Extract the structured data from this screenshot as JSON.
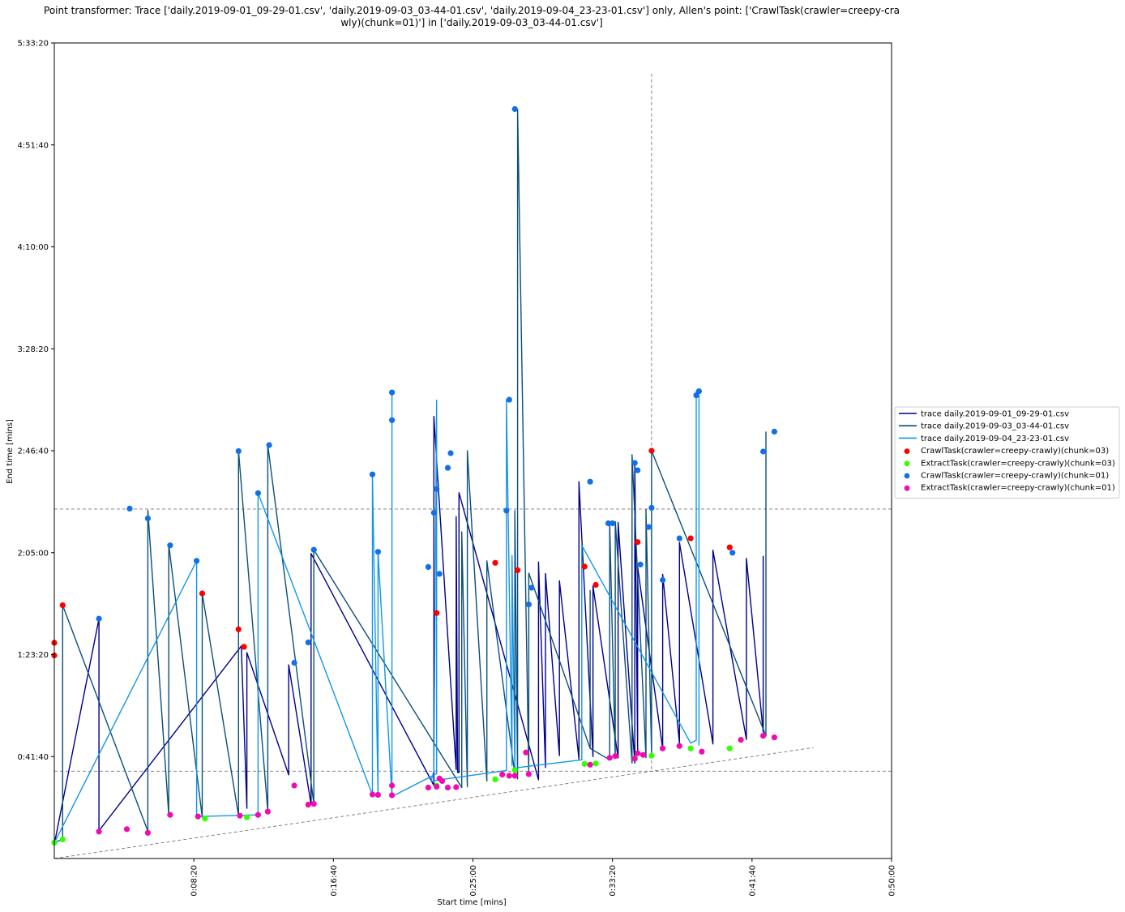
{
  "chart_data": {
    "type": "line",
    "title_lines": [
      "Point transformer: Trace ['daily.2019-09-01_09-29-01.csv', 'daily.2019-09-03_03-44-01.csv', 'daily.2019-09-04_23-23-01.csv'] only, Allen's point: ['CrawlTask(crawler=creepy-cra",
      "wly)(chunk=01)'] in ['daily.2019-09-03_03-44-01.csv']"
    ],
    "xlabel": "Start time [mins]",
    "ylabel": "End time [mins]",
    "xlim": [
      0,
      3000
    ],
    "ylim": [
      0,
      20000
    ],
    "x_ticks": [
      {
        "value": 500,
        "label": "0:08:20"
      },
      {
        "value": 1000,
        "label": "0:16:40"
      },
      {
        "value": 1500,
        "label": "0:25:00"
      },
      {
        "value": 2000,
        "label": "0:33:20"
      },
      {
        "value": 2500,
        "label": "0:41:40"
      },
      {
        "value": 3000,
        "label": "0:50:00"
      }
    ],
    "y_ticks": [
      {
        "value": 2500,
        "label": "0:41:40"
      },
      {
        "value": 5000,
        "label": "1:23:20"
      },
      {
        "value": 7500,
        "label": "2:05:00"
      },
      {
        "value": 10000,
        "label": "2:46:40"
      },
      {
        "value": 12500,
        "label": "3:28:20"
      },
      {
        "value": 15000,
        "label": "4:10:00"
      },
      {
        "value": 17500,
        "label": "4:51:40"
      },
      {
        "value": 20000,
        "label": "5:33:20"
      }
    ],
    "reference_lines": {
      "diagonal": {
        "from": [
          0,
          0
        ],
        "to": [
          2720,
          2720
        ]
      },
      "allen_point_x": 2140,
      "allen_point_y_top": 19250,
      "allen_point_y_bottom": 2140,
      "h_band": [
        2140,
        8570
      ]
    },
    "grid": false,
    "legend_position": "right",
    "series": [
      {
        "name": "trace daily.2019-09-01_09-29-01.csv",
        "color": "#00008b",
        "width": 1.4,
        "points": [
          [
            0,
            350
          ],
          [
            160,
            5880
          ],
          [
            160,
            680
          ],
          [
            670,
            5210
          ],
          [
            690,
            1230
          ],
          [
            690,
            5050
          ],
          [
            840,
            2050
          ],
          [
            840,
            4750
          ],
          [
            920,
            1320
          ],
          [
            920,
            7480
          ],
          [
            1360,
            1790
          ],
          [
            1360,
            10840
          ],
          [
            1440,
            2180
          ],
          [
            1440,
            8380
          ],
          [
            1445,
            2110
          ],
          [
            1450,
            2110
          ],
          [
            1450,
            8970
          ],
          [
            1735,
            1930
          ],
          [
            1735,
            7270
          ],
          [
            1760,
            2230
          ],
          [
            1760,
            6990
          ],
          [
            1810,
            2520
          ],
          [
            1810,
            6810
          ],
          [
            1880,
            2440
          ],
          [
            1880,
            9240
          ],
          [
            1930,
            2500
          ],
          [
            1930,
            6680
          ],
          [
            2020,
            2470
          ],
          [
            2020,
            8240
          ],
          [
            2080,
            2340
          ],
          [
            2080,
            9700
          ],
          [
            2090,
            2650
          ],
          [
            2090,
            7150
          ],
          [
            2180,
            2690
          ],
          [
            2180,
            6970
          ],
          [
            2240,
            2830
          ],
          [
            2240,
            7750
          ],
          [
            2360,
            2810
          ],
          [
            2360,
            7560
          ],
          [
            2480,
            2920
          ],
          [
            2480,
            7360
          ],
          [
            2540,
            3100
          ],
          [
            2540,
            7420
          ]
        ]
      },
      {
        "name": "trace daily.2019-09-03_03-44-01.csv",
        "color": "#0b4f7a",
        "width": 1.4,
        "points": [
          [
            0,
            390
          ],
          [
            30,
            470
          ],
          [
            30,
            6210
          ],
          [
            335,
            670
          ],
          [
            335,
            8540
          ],
          [
            410,
            1070
          ],
          [
            410,
            7700
          ],
          [
            530,
            1010
          ],
          [
            530,
            6500
          ],
          [
            660,
            1050
          ],
          [
            660,
            10000
          ],
          [
            765,
            1150
          ],
          [
            765,
            10140
          ],
          [
            930,
            1340
          ],
          [
            930,
            7570
          ],
          [
            1460,
            1740
          ],
          [
            1460,
            8010
          ],
          [
            1480,
            1760
          ],
          [
            1480,
            10000
          ],
          [
            1550,
            1900
          ],
          [
            1550,
            7300
          ],
          [
            1650,
            2060
          ],
          [
            1650,
            8530
          ],
          [
            1660,
            1950
          ],
          [
            1660,
            18380
          ],
          [
            1700,
            2050
          ],
          [
            1700,
            7000
          ],
          [
            1920,
            2700
          ],
          [
            1920,
            6570
          ],
          [
            1920,
            2700
          ],
          [
            1990,
            2420
          ],
          [
            1990,
            8260
          ],
          [
            2010,
            2460
          ],
          [
            2010,
            8260
          ],
          [
            2070,
            2340
          ],
          [
            2070,
            9900
          ],
          [
            2120,
            2470
          ],
          [
            2120,
            8560
          ],
          [
            2140,
            2560
          ],
          [
            2140,
            10000
          ],
          [
            2550,
            3010
          ],
          [
            2550,
            10470
          ]
        ]
      },
      {
        "name": "trace daily.2019-09-04_23-23-01.csv",
        "color": "#1296e8",
        "width": 1.4,
        "points": [
          [
            0,
            380
          ],
          [
            510,
            7300
          ],
          [
            510,
            1030
          ],
          [
            730,
            1070
          ],
          [
            730,
            8960
          ],
          [
            1140,
            1560
          ],
          [
            1140,
            9420
          ],
          [
            1160,
            1560
          ],
          [
            1160,
            7520
          ],
          [
            1210,
            1520
          ],
          [
            1210,
            11430
          ],
          [
            1210,
            1520
          ],
          [
            1370,
            2080
          ],
          [
            1370,
            11240
          ],
          [
            1360,
            2150
          ],
          [
            1350,
            1900
          ],
          [
            1620,
            2160
          ],
          [
            1620,
            11250
          ],
          [
            1640,
            2280
          ],
          [
            1640,
            7430
          ],
          [
            1650,
            2220
          ],
          [
            1890,
            2420
          ],
          [
            1890,
            7680
          ],
          [
            2280,
            2830
          ],
          [
            2300,
            2900
          ],
          [
            2300,
            11460
          ],
          [
            2310,
            11360
          ],
          [
            2310,
            2770
          ]
        ]
      }
    ],
    "scatter_series": [
      {
        "name": "CrawlTask(crawler=creepy-crawly)(chunk=03)",
        "color": "#ff0000",
        "points": [
          [
            0,
            5290
          ],
          [
            0,
            4980
          ],
          [
            30,
            6210
          ],
          [
            530,
            6500
          ],
          [
            660,
            5620
          ],
          [
            680,
            5190
          ],
          [
            1370,
            6020
          ],
          [
            1580,
            7250
          ],
          [
            1660,
            7070
          ],
          [
            1900,
            7160
          ],
          [
            1940,
            6710
          ],
          [
            2090,
            7760
          ],
          [
            2140,
            10000
          ],
          [
            2280,
            7850
          ],
          [
            2420,
            7630
          ]
        ]
      },
      {
        "name": "ExtractTask(crawler=creepy-crawly)(chunk=03)",
        "color": "#33ff00",
        "points": [
          [
            0,
            390
          ],
          [
            30,
            470
          ],
          [
            540,
            980
          ],
          [
            690,
            1010
          ],
          [
            1370,
            1790
          ],
          [
            1580,
            1940
          ],
          [
            1650,
            2170
          ],
          [
            1900,
            2320
          ],
          [
            1940,
            2330
          ],
          [
            2080,
            2460
          ],
          [
            2140,
            2520
          ],
          [
            2280,
            2700
          ],
          [
            2420,
            2700
          ]
        ]
      },
      {
        "name": "CrawlTask(crawler=creepy-crawly)(chunk=01)",
        "color": "#1170e8",
        "points": [
          [
            160,
            5880
          ],
          [
            270,
            8580
          ],
          [
            335,
            8340
          ],
          [
            415,
            7680
          ],
          [
            510,
            7300
          ],
          [
            660,
            9990
          ],
          [
            730,
            8960
          ],
          [
            770,
            10140
          ],
          [
            860,
            4800
          ],
          [
            910,
            5300
          ],
          [
            930,
            7570
          ],
          [
            1140,
            9420
          ],
          [
            1160,
            7520
          ],
          [
            1210,
            11430
          ],
          [
            1210,
            10750
          ],
          [
            1340,
            7150
          ],
          [
            1360,
            8480
          ],
          [
            1370,
            9060
          ],
          [
            1380,
            6980
          ],
          [
            1410,
            9580
          ],
          [
            1420,
            9940
          ],
          [
            1620,
            8530
          ],
          [
            1630,
            11250
          ],
          [
            1650,
            18380
          ],
          [
            1700,
            6230
          ],
          [
            1710,
            6640
          ],
          [
            1920,
            9240
          ],
          [
            1985,
            8220
          ],
          [
            2000,
            8220
          ],
          [
            2080,
            9700
          ],
          [
            2090,
            9520
          ],
          [
            2100,
            7210
          ],
          [
            2130,
            8130
          ],
          [
            2140,
            8600
          ],
          [
            2180,
            6830
          ],
          [
            2240,
            7850
          ],
          [
            2300,
            11360
          ],
          [
            2310,
            11460
          ],
          [
            2430,
            7500
          ],
          [
            2540,
            9980
          ],
          [
            2580,
            10470
          ]
        ]
      },
      {
        "name": "ExtractTask(crawler=creepy-crawly)(chunk=01)",
        "color": "#f20bb1",
        "points": [
          [
            160,
            660
          ],
          [
            260,
            720
          ],
          [
            335,
            630
          ],
          [
            415,
            1070
          ],
          [
            515,
            1030
          ],
          [
            665,
            1050
          ],
          [
            730,
            1070
          ],
          [
            765,
            1150
          ],
          [
            860,
            1790
          ],
          [
            910,
            1320
          ],
          [
            930,
            1340
          ],
          [
            1140,
            1570
          ],
          [
            1160,
            1560
          ],
          [
            1210,
            1550
          ],
          [
            1210,
            1790
          ],
          [
            1340,
            1740
          ],
          [
            1370,
            1760
          ],
          [
            1380,
            1960
          ],
          [
            1390,
            1900
          ],
          [
            1410,
            1740
          ],
          [
            1440,
            1750
          ],
          [
            1605,
            2060
          ],
          [
            1630,
            2030
          ],
          [
            1650,
            2030
          ],
          [
            1690,
            2600
          ],
          [
            1700,
            2070
          ],
          [
            1920,
            2300
          ],
          [
            1990,
            2470
          ],
          [
            2010,
            2510
          ],
          [
            2080,
            2450
          ],
          [
            2090,
            2580
          ],
          [
            2110,
            2540
          ],
          [
            2180,
            2700
          ],
          [
            2240,
            2760
          ],
          [
            2320,
            2620
          ],
          [
            2460,
            2910
          ],
          [
            2540,
            3010
          ],
          [
            2580,
            2970
          ]
        ]
      }
    ]
  }
}
